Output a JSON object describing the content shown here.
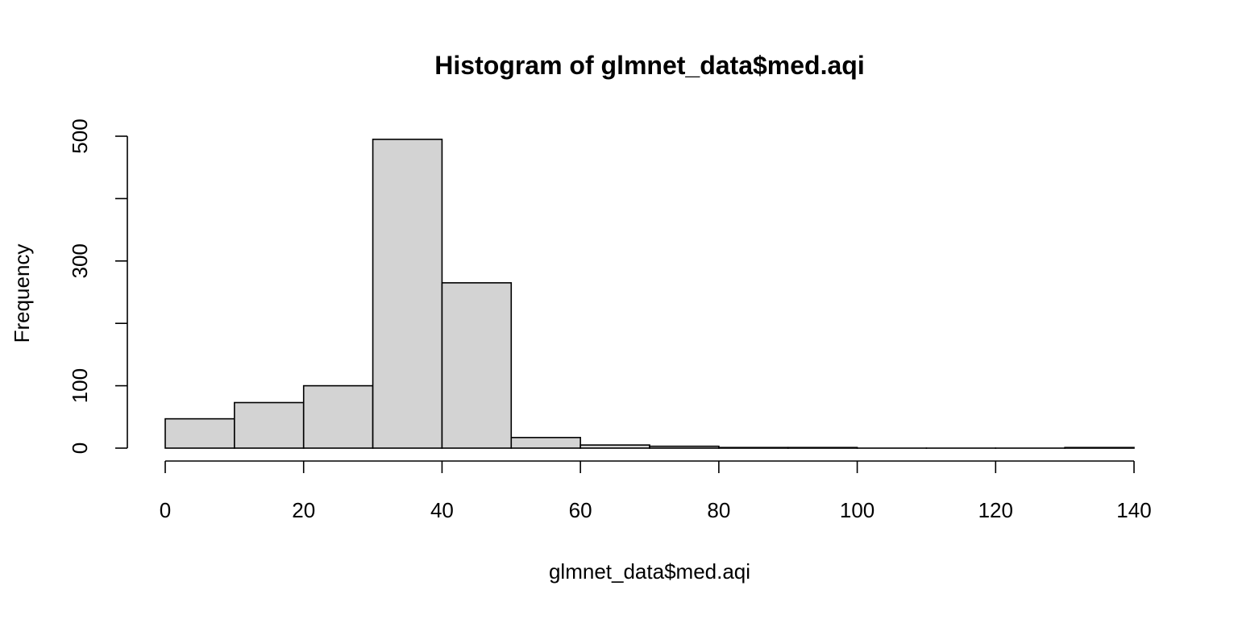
{
  "chart_data": {
    "type": "bar",
    "title": "Histogram of glmnet_data$med.aqi",
    "xlabel": "glmnet_data$med.aqi",
    "ylabel": "Frequency",
    "bin_edges": [
      0,
      10,
      20,
      30,
      40,
      50,
      60,
      70,
      80,
      90,
      100,
      110,
      120,
      130,
      140
    ],
    "values": [
      47,
      73,
      100,
      495,
      265,
      17,
      5,
      3,
      1,
      1,
      0,
      0,
      0,
      1
    ],
    "xlim": [
      0,
      140
    ],
    "ylim": [
      0,
      500
    ],
    "x_ticks": [
      0,
      20,
      40,
      60,
      80,
      100,
      120,
      140
    ],
    "x_tick_labels": [
      "0",
      "20",
      "40",
      "60",
      "80",
      "100",
      "120",
      "140"
    ],
    "y_ticks": [
      0,
      100,
      200,
      300,
      400,
      500
    ],
    "y_tick_labels": [
      "0",
      "100",
      "",
      "300",
      "",
      "500"
    ],
    "bar_color": "#d3d3d3",
    "grid": false
  }
}
